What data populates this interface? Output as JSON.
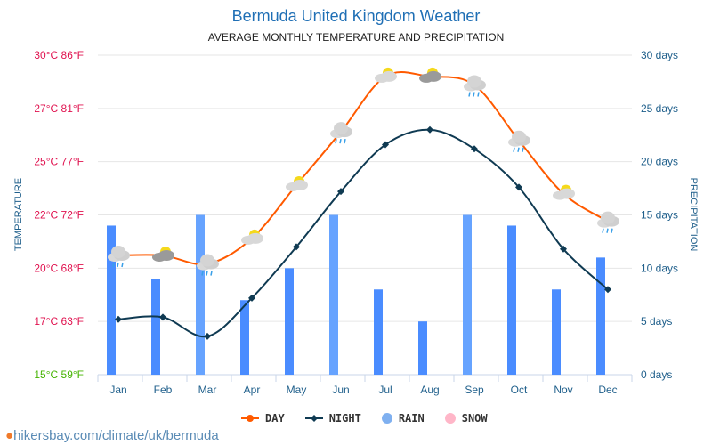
{
  "title": "Bermuda United Kingdom Weather",
  "subtitle": "AVERAGE MONTHLY TEMPERATURE AND PRECIPITATION",
  "source": "hikersbay.com/climate/uk/bermuda",
  "colors": {
    "day": "#ff5a00",
    "night": "#0f3a52",
    "rain": "#4a8cff",
    "snow": "#ffb6c8",
    "left_axis": "#e0124f",
    "bottom_left_label": "#44b300",
    "right_axis": "#1f5f8b"
  },
  "chart_data": {
    "type": "line+bar",
    "categories": [
      "Jan",
      "Feb",
      "Mar",
      "Apr",
      "May",
      "Jun",
      "Jul",
      "Aug",
      "Sep",
      "Oct",
      "Nov",
      "Dec"
    ],
    "ylabel_left": "TEMPERATURE",
    "ylabel_right": "PRECIPITATION",
    "left_ticks": [
      {
        "value": 30,
        "label": "30°C 86°F"
      },
      {
        "value": 27.5,
        "label": "27°C 81°F"
      },
      {
        "value": 25,
        "label": "25°C 77°F"
      },
      {
        "value": 22.5,
        "label": "22°C 72°F"
      },
      {
        "value": 20,
        "label": "20°C 68°F"
      },
      {
        "value": 17.5,
        "label": "17°C 63°F"
      },
      {
        "value": 15,
        "label": "15°C 59°F"
      }
    ],
    "right_ticks": [
      {
        "value": 30,
        "label": "30 days"
      },
      {
        "value": 25,
        "label": "25 days"
      },
      {
        "value": 20,
        "label": "20 days"
      },
      {
        "value": 15,
        "label": "15 days"
      },
      {
        "value": 10,
        "label": "10 days"
      },
      {
        "value": 5,
        "label": "5 days"
      },
      {
        "value": 0,
        "label": "0 days"
      }
    ],
    "ylim_left": [
      15,
      30
    ],
    "ylim_right": [
      0,
      30
    ],
    "grid": true,
    "legend_position": "bottom",
    "series": [
      {
        "name": "DAY",
        "type": "line",
        "values": [
          20.6,
          20.6,
          20.2,
          21.4,
          23.9,
          26.4,
          29.0,
          29.0,
          28.6,
          26.0,
          23.5,
          22.2
        ]
      },
      {
        "name": "NIGHT",
        "type": "line",
        "values": [
          17.6,
          17.7,
          16.8,
          18.6,
          21.0,
          23.6,
          25.8,
          26.5,
          25.6,
          23.8,
          20.9,
          19.0
        ]
      },
      {
        "name": "RAIN",
        "type": "bar",
        "values": [
          14,
          9,
          15,
          7,
          10,
          15,
          8,
          5,
          15,
          14,
          8,
          11
        ]
      },
      {
        "name": "SNOW",
        "type": "bar",
        "values": [
          0,
          0,
          0,
          0,
          0,
          0,
          0,
          0,
          0,
          0,
          0,
          0
        ]
      }
    ],
    "weather_icons": [
      "rain",
      "sun-cloud-grey",
      "rain",
      "sun-cloud",
      "sun-cloud",
      "rain",
      "sun-cloud",
      "sun-cloud-grey",
      "rain",
      "rain",
      "sun-cloud",
      "rain"
    ]
  }
}
